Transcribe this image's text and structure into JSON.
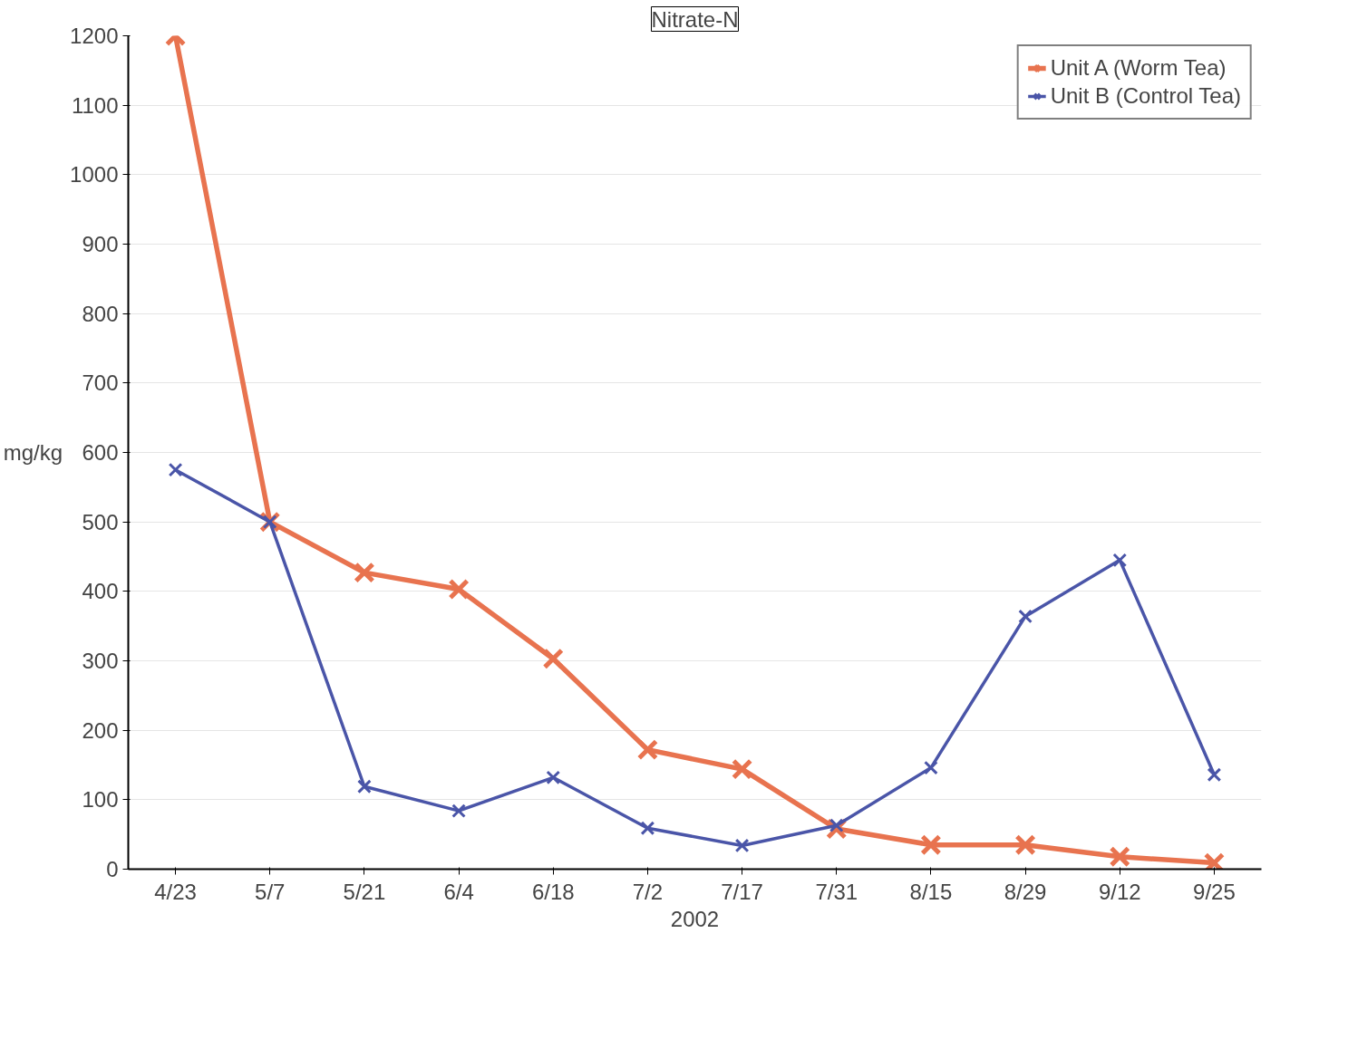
{
  "chart_data": {
    "type": "line",
    "title": "Nitrate-N",
    "xlabel": "2002",
    "ylabel": "mg/kg",
    "categories": [
      "4/23",
      "5/7",
      "5/21",
      "6/4",
      "6/18",
      "7/2",
      "7/17",
      "7/31",
      "8/15",
      "8/29",
      "9/12",
      "9/25"
    ],
    "series": [
      {
        "name": "Unit A (Worm Tea)",
        "color": "#e8734f",
        "values": [
          1200,
          500,
          427,
          403,
          303,
          172,
          144,
          58,
          35,
          35,
          18,
          9
        ]
      },
      {
        "name": "Unit B (Control Tea)",
        "color": "#4a55a8",
        "values": [
          575,
          500,
          119,
          84,
          132,
          59,
          34,
          63,
          146,
          364,
          445,
          136
        ]
      }
    ],
    "ylim": [
      0,
      1200
    ],
    "yticks": [
      0,
      100,
      200,
      300,
      400,
      500,
      600,
      700,
      800,
      900,
      1000,
      1100,
      1200
    ],
    "grid": "y",
    "legend": "top right",
    "marker": "cross",
    "line_style": "solid"
  }
}
